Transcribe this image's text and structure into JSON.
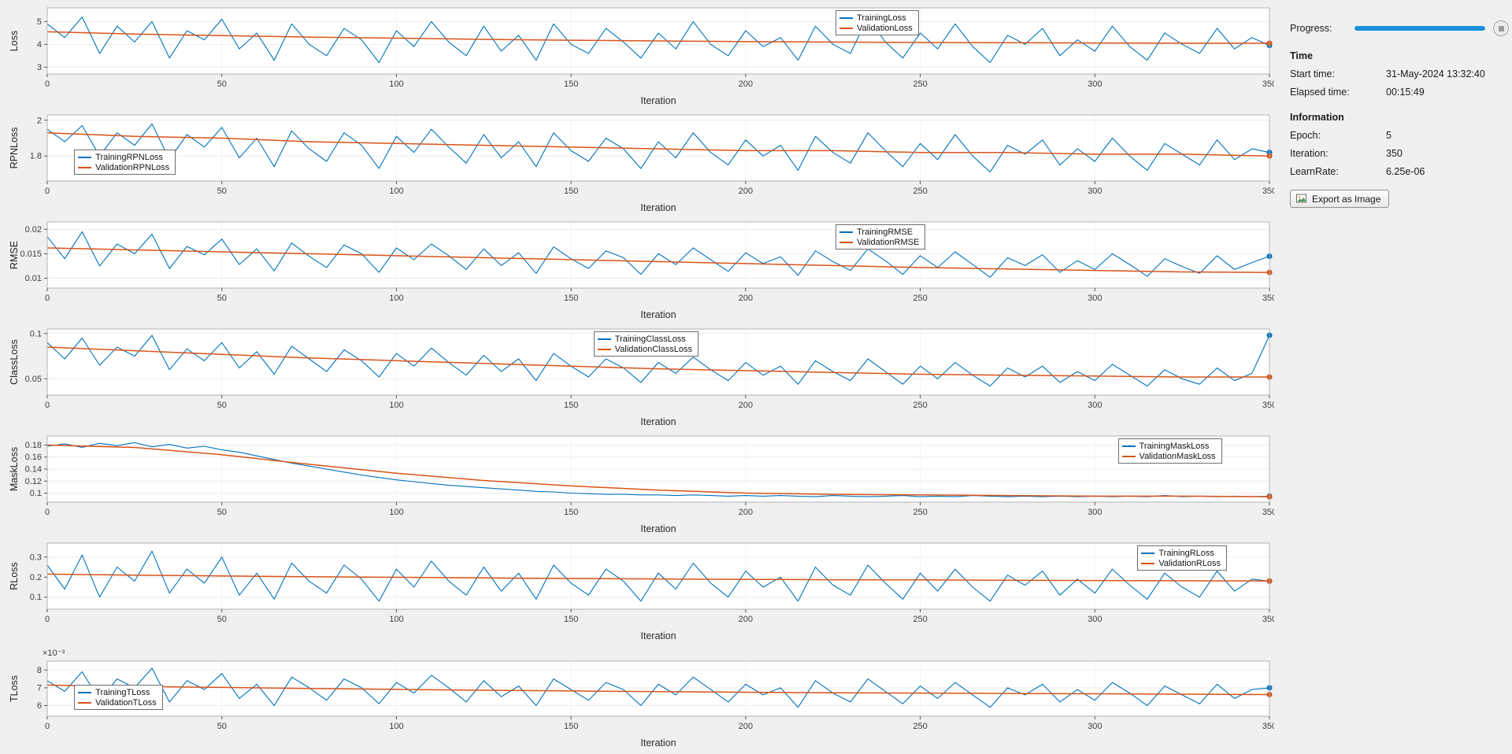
{
  "panel": {
    "progress_label": "Progress:",
    "time_heading": "Time",
    "rows_time": [
      {
        "label": "Start time:",
        "value": "31-May-2024 13:32:40"
      },
      {
        "label": "Elapsed time:",
        "value": "00:15:49"
      }
    ],
    "info_heading": "Information",
    "rows_info": [
      {
        "label": "Epoch:",
        "value": "5"
      },
      {
        "label": "Iteration:",
        "value": "350"
      },
      {
        "label": "LearnRate:",
        "value": "6.25e-06"
      }
    ],
    "export_button": "Export as Image",
    "colors": {
      "progress": "#1b8fdd",
      "training": "#0072BD",
      "validation": "#D95319"
    }
  },
  "chart_data": [
    {
      "type": "line",
      "ylabel": "Loss",
      "xlabel": "Iteration",
      "xlim": [
        0,
        350
      ],
      "xticks": [
        0,
        50,
        100,
        150,
        200,
        250,
        300,
        350
      ],
      "ylim": [
        2.7,
        5.6
      ],
      "yticks": [
        3,
        4,
        5
      ],
      "ytick_labels": [
        "3",
        "4",
        "5"
      ],
      "legend": {
        "position": "top",
        "x_frac": 0.645
      },
      "series": [
        {
          "name": "TrainingLoss",
          "color": "#0072BD",
          "x_step": 5,
          "values": [
            4.9,
            4.3,
            5.2,
            3.6,
            4.8,
            4.1,
            5.0,
            3.4,
            4.6,
            4.2,
            5.1,
            3.8,
            4.5,
            3.3,
            4.9,
            4.0,
            3.5,
            4.7,
            4.2,
            3.2,
            4.6,
            3.9,
            5.0,
            4.1,
            3.5,
            4.8,
            3.7,
            4.4,
            3.3,
            4.9,
            4.0,
            3.6,
            4.7,
            4.1,
            3.4,
            4.5,
            3.8,
            5.0,
            4.0,
            3.5,
            4.6,
            3.9,
            4.3,
            3.3,
            4.8,
            4.0,
            3.6,
            5.2,
            4.1,
            3.4,
            4.5,
            3.8,
            4.9,
            3.9,
            3.2,
            4.4,
            4.0,
            4.7,
            3.5,
            4.2,
            3.7,
            4.8,
            3.9,
            3.3,
            4.5,
            4.0,
            3.6,
            4.7,
            3.8,
            4.3,
            3.95
          ]
        },
        {
          "name": "ValidationLoss",
          "color": "#D95319",
          "x_step": 25,
          "values": [
            4.55,
            4.45,
            4.38,
            4.32,
            4.27,
            4.22,
            4.18,
            4.15,
            4.12,
            4.1,
            4.08,
            4.07,
            4.06,
            4.05,
            4.05
          ]
        }
      ]
    },
    {
      "type": "line",
      "ylabel": "RPNLoss",
      "xlabel": "Iteration",
      "xlim": [
        0,
        350
      ],
      "xticks": [
        0,
        50,
        100,
        150,
        200,
        250,
        300,
        350
      ],
      "ylim": [
        1.66,
        2.03
      ],
      "yticks": [
        1.8,
        2
      ],
      "ytick_labels": [
        "1.8",
        "2"
      ],
      "legend": {
        "position": "bottom",
        "x_frac": 0.022
      },
      "series": [
        {
          "name": "TrainingRPNLoss",
          "color": "#0072BD",
          "x_step": 5,
          "values": [
            1.95,
            1.88,
            1.97,
            1.8,
            1.93,
            1.86,
            1.98,
            1.78,
            1.92,
            1.85,
            1.96,
            1.79,
            1.9,
            1.74,
            1.94,
            1.84,
            1.77,
            1.93,
            1.86,
            1.73,
            1.91,
            1.82,
            1.95,
            1.85,
            1.76,
            1.92,
            1.79,
            1.88,
            1.74,
            1.93,
            1.83,
            1.77,
            1.9,
            1.84,
            1.73,
            1.88,
            1.79,
            1.93,
            1.82,
            1.75,
            1.89,
            1.8,
            1.86,
            1.72,
            1.91,
            1.82,
            1.76,
            1.93,
            1.83,
            1.74,
            1.87,
            1.78,
            1.92,
            1.8,
            1.71,
            1.86,
            1.81,
            1.89,
            1.75,
            1.84,
            1.77,
            1.9,
            1.8,
            1.72,
            1.87,
            1.81,
            1.75,
            1.89,
            1.78,
            1.84,
            1.82
          ]
        },
        {
          "name": "ValidationRPNLoss",
          "color": "#D95319",
          "x_step": 25,
          "values": [
            1.93,
            1.91,
            1.9,
            1.88,
            1.87,
            1.86,
            1.85,
            1.84,
            1.83,
            1.83,
            1.82,
            1.82,
            1.81,
            1.81,
            1.8
          ]
        }
      ]
    },
    {
      "type": "line",
      "ylabel": "RMSE",
      "xlabel": "Iteration",
      "xlim": [
        0,
        350
      ],
      "xticks": [
        0,
        50,
        100,
        150,
        200,
        250,
        300,
        350
      ],
      "ylim": [
        0.008,
        0.0215
      ],
      "yticks": [
        0.01,
        0.015,
        0.02
      ],
      "ytick_labels": [
        "0.01",
        "0.015",
        "0.02"
      ],
      "legend": {
        "position": "top",
        "x_frac": 0.645
      },
      "series": [
        {
          "name": "TrainingRMSE",
          "color": "#0072BD",
          "x_step": 5,
          "values": [
            0.0185,
            0.014,
            0.0195,
            0.0125,
            0.017,
            0.015,
            0.019,
            0.012,
            0.0165,
            0.0148,
            0.018,
            0.0128,
            0.016,
            0.0115,
            0.0172,
            0.0145,
            0.0122,
            0.0168,
            0.015,
            0.0112,
            0.0162,
            0.0138,
            0.017,
            0.0146,
            0.0118,
            0.016,
            0.0126,
            0.0152,
            0.011,
            0.0164,
            0.014,
            0.012,
            0.0156,
            0.0142,
            0.0108,
            0.015,
            0.0128,
            0.0162,
            0.0138,
            0.0114,
            0.0152,
            0.013,
            0.0144,
            0.0106,
            0.0156,
            0.0134,
            0.0116,
            0.016,
            0.0136,
            0.0108,
            0.0146,
            0.0122,
            0.0154,
            0.0128,
            0.0102,
            0.0142,
            0.0126,
            0.0148,
            0.0112,
            0.0136,
            0.0118,
            0.015,
            0.0128,
            0.0104,
            0.014,
            0.0124,
            0.011,
            0.0146,
            0.0118,
            0.0132,
            0.0145
          ]
        },
        {
          "name": "ValidationRMSE",
          "color": "#D95319",
          "x_step": 25,
          "values": [
            0.0162,
            0.0158,
            0.0154,
            0.015,
            0.0146,
            0.0142,
            0.0138,
            0.0134,
            0.013,
            0.0126,
            0.0122,
            0.0119,
            0.0116,
            0.0113,
            0.0112
          ]
        }
      ]
    },
    {
      "type": "line",
      "ylabel": "ClassLoss",
      "xlabel": "Iteration",
      "xlim": [
        0,
        350
      ],
      "xticks": [
        0,
        50,
        100,
        150,
        200,
        250,
        300,
        350
      ],
      "ylim": [
        0.032,
        0.105
      ],
      "yticks": [
        0.05,
        0.1
      ],
      "ytick_labels": [
        "0.05",
        "0.1"
      ],
      "legend": {
        "position": "top",
        "x_frac": 0.447
      },
      "series": [
        {
          "name": "TrainingClassLoss",
          "color": "#0072BD",
          "x_step": 5,
          "values": [
            0.09,
            0.072,
            0.095,
            0.065,
            0.085,
            0.075,
            0.098,
            0.06,
            0.083,
            0.07,
            0.09,
            0.062,
            0.08,
            0.055,
            0.086,
            0.072,
            0.058,
            0.082,
            0.07,
            0.052,
            0.078,
            0.064,
            0.084,
            0.068,
            0.054,
            0.076,
            0.058,
            0.072,
            0.048,
            0.078,
            0.064,
            0.052,
            0.072,
            0.062,
            0.046,
            0.068,
            0.056,
            0.074,
            0.06,
            0.048,
            0.068,
            0.054,
            0.064,
            0.044,
            0.07,
            0.058,
            0.048,
            0.072,
            0.058,
            0.044,
            0.064,
            0.05,
            0.068,
            0.054,
            0.042,
            0.062,
            0.052,
            0.064,
            0.046,
            0.058,
            0.048,
            0.066,
            0.054,
            0.042,
            0.06,
            0.05,
            0.044,
            0.062,
            0.048,
            0.056,
            0.098
          ]
        },
        {
          "name": "ValidationClassLoss",
          "color": "#D95319",
          "x_step": 25,
          "values": [
            0.085,
            0.081,
            0.077,
            0.073,
            0.07,
            0.067,
            0.064,
            0.061,
            0.059,
            0.057,
            0.055,
            0.054,
            0.053,
            0.052,
            0.052
          ]
        }
      ]
    },
    {
      "type": "line",
      "ylabel": "MaskLoss",
      "xlabel": "Iteration",
      "xlim": [
        0,
        350
      ],
      "xticks": [
        0,
        50,
        100,
        150,
        200,
        250,
        300,
        350
      ],
      "ylim": [
        0.085,
        0.195
      ],
      "yticks": [
        0.1,
        0.12,
        0.14,
        0.16,
        0.18
      ],
      "ytick_labels": [
        "0.1",
        "0.12",
        "0.14",
        "0.16",
        "0.18"
      ],
      "legend": {
        "position": "top",
        "x_frac": 0.876
      },
      "series": [
        {
          "name": "TrainingMaskLoss",
          "color": "#0072BD",
          "x_step": 5,
          "values": [
            0.178,
            0.182,
            0.176,
            0.183,
            0.179,
            0.184,
            0.177,
            0.181,
            0.175,
            0.178,
            0.172,
            0.168,
            0.162,
            0.156,
            0.15,
            0.145,
            0.14,
            0.135,
            0.13,
            0.126,
            0.122,
            0.119,
            0.116,
            0.113,
            0.111,
            0.109,
            0.107,
            0.105,
            0.103,
            0.102,
            0.1,
            0.099,
            0.098,
            0.098,
            0.097,
            0.097,
            0.096,
            0.097,
            0.096,
            0.095,
            0.096,
            0.095,
            0.096,
            0.095,
            0.094,
            0.096,
            0.095,
            0.094,
            0.095,
            0.096,
            0.094,
            0.095,
            0.094,
            0.096,
            0.095,
            0.094,
            0.095,
            0.094,
            0.095,
            0.094,
            0.095,
            0.094,
            0.095,
            0.094,
            0.096,
            0.094,
            0.095,
            0.094,
            0.095,
            0.094,
            0.095
          ]
        },
        {
          "name": "ValidationMaskLoss",
          "color": "#D95319",
          "x_step": 25,
          "values": [
            0.18,
            0.176,
            0.164,
            0.148,
            0.133,
            0.121,
            0.112,
            0.105,
            0.1,
            0.098,
            0.097,
            0.096,
            0.095,
            0.095,
            0.094
          ]
        }
      ]
    },
    {
      "type": "line",
      "ylabel": "RLoss",
      "xlabel": "Iteration",
      "xlim": [
        0,
        350
      ],
      "xticks": [
        0,
        50,
        100,
        150,
        200,
        250,
        300,
        350
      ],
      "ylim": [
        0.04,
        0.37
      ],
      "yticks": [
        0.1,
        0.2,
        0.3
      ],
      "ytick_labels": [
        "0.1",
        "0.2",
        "0.3"
      ],
      "legend": {
        "position": "top",
        "x_frac": 0.892
      },
      "series": [
        {
          "name": "TrainingRLoss",
          "color": "#0072BD",
          "x_step": 5,
          "values": [
            0.26,
            0.14,
            0.31,
            0.1,
            0.25,
            0.18,
            0.33,
            0.12,
            0.24,
            0.17,
            0.3,
            0.11,
            0.22,
            0.09,
            0.27,
            0.18,
            0.12,
            0.26,
            0.19,
            0.08,
            0.24,
            0.15,
            0.28,
            0.18,
            0.11,
            0.25,
            0.13,
            0.22,
            0.09,
            0.26,
            0.17,
            0.11,
            0.24,
            0.18,
            0.08,
            0.22,
            0.14,
            0.27,
            0.17,
            0.1,
            0.23,
            0.15,
            0.2,
            0.08,
            0.25,
            0.16,
            0.11,
            0.26,
            0.17,
            0.09,
            0.22,
            0.13,
            0.24,
            0.15,
            0.08,
            0.21,
            0.16,
            0.23,
            0.11,
            0.19,
            0.12,
            0.24,
            0.16,
            0.09,
            0.22,
            0.15,
            0.1,
            0.23,
            0.13,
            0.19,
            0.18
          ]
        },
        {
          "name": "ValidationRLoss",
          "color": "#D95319",
          "x_step": 25,
          "values": [
            0.215,
            0.21,
            0.206,
            0.202,
            0.199,
            0.196,
            0.193,
            0.191,
            0.189,
            0.187,
            0.186,
            0.184,
            0.183,
            0.182,
            0.181
          ]
        }
      ]
    },
    {
      "type": "line",
      "ylabel": "TLoss",
      "xlabel": "Iteration",
      "y_offset_label": "×10⁻³",
      "xlim": [
        0,
        350
      ],
      "xticks": [
        0,
        50,
        100,
        150,
        200,
        250,
        300,
        350
      ],
      "ylim": [
        5.4,
        8.5
      ],
      "yticks": [
        6,
        7,
        8
      ],
      "ytick_labels": [
        "6",
        "7",
        "8"
      ],
      "legend": {
        "position": "bottom",
        "x_frac": 0.022
      },
      "series": [
        {
          "name": "TrainingTLoss",
          "color": "#0072BD",
          "x_step": 5,
          "values": [
            7.4,
            6.8,
            7.9,
            6.3,
            7.5,
            7.0,
            8.1,
            6.2,
            7.4,
            6.9,
            7.8,
            6.4,
            7.2,
            6.0,
            7.6,
            7.0,
            6.3,
            7.5,
            7.0,
            6.1,
            7.3,
            6.7,
            7.7,
            7.0,
            6.2,
            7.4,
            6.5,
            7.1,
            6.0,
            7.5,
            6.9,
            6.3,
            7.3,
            6.9,
            6.0,
            7.2,
            6.6,
            7.6,
            6.9,
            6.2,
            7.2,
            6.6,
            7.0,
            5.9,
            7.4,
            6.7,
            6.2,
            7.5,
            6.8,
            6.1,
            7.1,
            6.4,
            7.3,
            6.6,
            5.9,
            7.0,
            6.6,
            7.2,
            6.2,
            6.9,
            6.3,
            7.3,
            6.7,
            6.0,
            7.1,
            6.6,
            6.1,
            7.2,
            6.4,
            6.9,
            7.0
          ]
        },
        {
          "name": "ValidationTLoss",
          "color": "#D95319",
          "x_step": 25,
          "values": [
            7.15,
            7.08,
            7.02,
            6.96,
            6.91,
            6.86,
            6.82,
            6.78,
            6.75,
            6.72,
            6.7,
            6.68,
            6.66,
            6.64,
            6.62
          ]
        }
      ]
    }
  ]
}
